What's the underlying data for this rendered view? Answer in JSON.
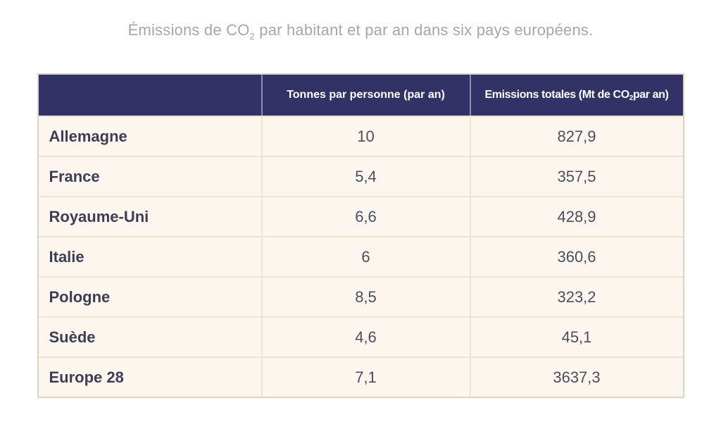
{
  "title": {
    "part1": "Émissions de CO",
    "subscript": "2",
    "part2": " par habitant et par an dans six pays européens.",
    "color": "#a7a7a7"
  },
  "table": {
    "colors": {
      "header_background": "#333266",
      "header_text": "#ffffff",
      "body_background": "#fdf6ee",
      "outer_border": "#dcd4c2",
      "inner_border": "#ece4d3",
      "country_text": "#3f3d56",
      "number_text": "#4d4d5e"
    },
    "headers": {
      "col1": "",
      "col2": "Tonnes par personne (par an)",
      "col3_part1": "Emissions totales (Mt de CO",
      "col3_sub": "2",
      "col3_part2": " par an)"
    },
    "rows": [
      {
        "name": "Allemagne",
        "tonnes": "10",
        "total": "827,9"
      },
      {
        "name": "France",
        "tonnes": "5,4",
        "total": "357,5"
      },
      {
        "name": "Royaume-Uni",
        "tonnes": "6,6",
        "total": "428,9"
      },
      {
        "name": "Italie",
        "tonnes": "6",
        "total": "360,6"
      },
      {
        "name": "Pologne",
        "tonnes": "8,5",
        "total": "323,2"
      },
      {
        "name": "Suède",
        "tonnes": "4,6",
        "total": "45,1"
      },
      {
        "name": "Europe 28",
        "tonnes": "7,1",
        "total": "3637,3"
      }
    ]
  },
  "chart_data": {
    "type": "table",
    "title": "Émissions de CO2 par habitant et par an dans six pays européens.",
    "columns": [
      "",
      "Tonnes par personne (par an)",
      "Emissions totales (Mt de CO2 par an)"
    ],
    "rows": [
      [
        "Allemagne",
        10,
        827.9
      ],
      [
        "France",
        5.4,
        357.5
      ],
      [
        "Royaume-Uni",
        6.6,
        428.9
      ],
      [
        "Italie",
        6,
        360.6
      ],
      [
        "Pologne",
        8.5,
        323.2
      ],
      [
        "Suède",
        4.6,
        45.1
      ],
      [
        "Europe 28",
        7.1,
        3637.3
      ]
    ]
  }
}
